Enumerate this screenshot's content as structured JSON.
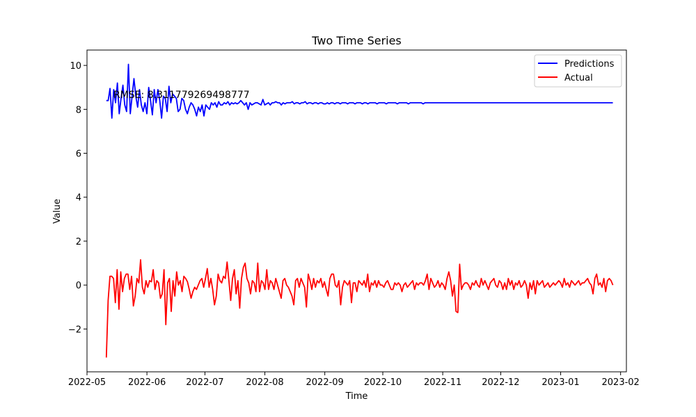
{
  "chart_data": {
    "type": "line",
    "title": "Two Time Series",
    "xlabel": "Time",
    "ylabel": "Value",
    "x_ticks": [
      "2022-05",
      "2022-06",
      "2022-07",
      "2022-08",
      "2022-09",
      "2022-10",
      "2022-11",
      "2022-12",
      "2023-01",
      "2023-02"
    ],
    "y_ticks": [
      -2,
      0,
      2,
      4,
      6,
      8,
      10
    ],
    "xlim": [
      "2022-05-01",
      "2023-02-04"
    ],
    "ylim": [
      -3.95,
      10.7
    ],
    "x_start": "2022-05-11",
    "x_end": "2023-01-28",
    "grid": false,
    "legend_position": "top-right",
    "annotation": "RMSE: 8.311779269498777",
    "series": [
      {
        "name": "Predictions",
        "color": "#0000ff",
        "values": [
          8.4,
          8.4,
          8.95,
          7.6,
          8.9,
          8.3,
          9.2,
          7.8,
          8.5,
          9.1,
          8.2,
          7.9,
          10.05,
          7.8,
          8.6,
          9.4,
          8.6,
          8.1,
          8.9,
          8.2,
          7.9,
          8.3,
          7.8,
          9.0,
          8.4,
          7.75,
          8.9,
          8.3,
          8.9,
          8.4,
          7.6,
          8.6,
          8.5,
          7.9,
          9.05,
          8.3,
          8.7,
          8.6,
          8.5,
          7.9,
          8.0,
          8.5,
          8.4,
          8.0,
          7.8,
          8.1,
          8.3,
          8.2,
          8.0,
          7.7,
          8.1,
          7.9,
          8.2,
          7.7,
          8.2,
          8.1,
          8.0,
          8.3,
          8.2,
          8.3,
          8.1,
          8.35,
          8.2,
          8.2,
          8.3,
          8.25,
          8.35,
          8.2,
          8.3,
          8.25,
          8.3,
          8.25,
          8.3,
          8.4,
          8.3,
          8.2,
          8.3,
          8.0,
          8.3,
          8.2,
          8.25,
          8.3,
          8.3,
          8.25,
          8.2,
          8.45,
          8.2,
          8.25,
          8.3,
          8.2,
          8.3,
          8.3,
          8.35,
          8.3,
          8.3,
          8.2,
          8.3,
          8.25,
          8.3,
          8.3,
          8.3,
          8.35,
          8.25,
          8.3,
          8.3,
          8.25,
          8.3,
          8.3,
          8.35,
          8.25,
          8.3,
          8.3,
          8.25,
          8.3,
          8.3,
          8.25,
          8.3,
          8.3,
          8.25,
          8.25,
          8.3,
          8.25,
          8.3,
          8.3,
          8.25,
          8.3,
          8.3,
          8.25,
          8.3,
          8.3,
          8.3,
          8.25,
          8.3,
          8.3,
          8.3,
          8.25,
          8.3,
          8.3,
          8.3,
          8.25,
          8.3,
          8.3,
          8.25,
          8.3,
          8.3,
          8.3,
          8.3,
          8.25,
          8.3,
          8.3,
          8.3,
          8.3,
          8.25,
          8.3,
          8.3,
          8.3,
          8.3,
          8.3,
          8.25,
          8.3,
          8.3,
          8.3,
          8.3,
          8.3,
          8.25,
          8.3,
          8.3,
          8.3,
          8.3,
          8.3,
          8.3,
          8.3,
          8.25,
          8.3,
          8.3,
          8.3,
          8.3,
          8.3,
          8.3,
          8.3,
          8.3,
          8.3,
          8.3,
          8.3,
          8.3,
          8.3,
          8.3,
          8.3,
          8.3,
          8.3,
          8.3,
          8.3,
          8.3,
          8.3,
          8.3,
          8.3,
          8.3,
          8.3,
          8.3,
          8.3,
          8.3,
          8.3,
          8.3,
          8.3,
          8.3,
          8.3,
          8.3,
          8.3,
          8.3,
          8.3,
          8.3,
          8.3,
          8.3,
          8.3,
          8.3,
          8.3,
          8.3,
          8.3,
          8.3,
          8.3,
          8.3,
          8.3,
          8.3,
          8.3,
          8.3,
          8.3,
          8.3,
          8.3,
          8.3,
          8.3,
          8.3,
          8.3,
          8.3,
          8.3,
          8.3,
          8.3,
          8.3,
          8.3,
          8.3,
          8.3,
          8.3,
          8.3,
          8.3,
          8.3,
          8.3,
          8.3,
          8.3,
          8.3,
          8.3,
          8.3,
          8.3,
          8.3,
          8.3,
          8.3,
          8.3,
          8.3,
          8.3,
          8.3,
          8.3,
          8.3,
          8.3,
          8.3,
          8.3,
          8.3,
          8.3,
          8.3,
          8.3,
          8.3,
          8.3,
          8.3,
          8.3,
          8.3,
          8.3,
          8.3,
          8.3,
          8.3
        ]
      },
      {
        "name": "Actual",
        "color": "#ff0000",
        "values": [
          -3.3,
          -0.7,
          0.4,
          0.4,
          0.3,
          -0.8,
          0.7,
          -1.1,
          0.6,
          -0.3,
          0.3,
          0.5,
          0.5,
          -0.2,
          0.4,
          -0.95,
          -0.5,
          0.3,
          0.1,
          1.15,
          -0.1,
          -0.4,
          0.2,
          -0.1,
          0.2,
          0.15,
          0.7,
          -0.2,
          0.2,
          0.1,
          -0.6,
          -0.4,
          0.7,
          -1.8,
          0.1,
          0.3,
          -1.2,
          0.2,
          -0.5,
          0.6,
          0.0,
          0.2,
          -0.3,
          0.4,
          0.3,
          0.15,
          -0.2,
          -0.6,
          -0.3,
          -0.1,
          -0.2,
          0.0,
          0.2,
          0.3,
          -0.1,
          0.3,
          0.75,
          -0.1,
          0.3,
          -0.2,
          -0.9,
          -0.5,
          0.5,
          0.2,
          0.1,
          0.4,
          0.3,
          1.05,
          0.2,
          -0.7,
          0.3,
          0.7,
          -0.4,
          0.2,
          -1.05,
          0.3,
          0.8,
          1.0,
          0.3,
          0.1,
          -0.4,
          0.2,
          0.1,
          -0.3,
          1.0,
          -0.3,
          0.2,
          0.1,
          -0.2,
          0.7,
          -0.2,
          0.2,
          0.1,
          -0.2,
          0.3,
          0.0,
          -0.3,
          -0.6,
          0.2,
          0.3,
          0.0,
          -0.1,
          -0.3,
          -0.5,
          -0.9,
          0.2,
          0.3,
          -0.1,
          0.3,
          0.1,
          -0.1,
          -1.0,
          0.5,
          0.2,
          -0.2,
          0.3,
          -0.1,
          0.2,
          0.1,
          0.3,
          -0.1,
          0.15,
          -0.2,
          -0.5,
          0.3,
          0.5,
          0.5,
          0.0,
          -0.1,
          0.2,
          -0.9,
          -0.1,
          0.2,
          0.1,
          0.0,
          0.2,
          -0.8,
          0.1,
          0.1,
          -0.3,
          0.2,
          0.1,
          0.0,
          0.2,
          -0.1,
          0.5,
          -0.3,
          0.1,
          0.0,
          0.2,
          -0.1,
          0.2,
          0.0,
          0.0,
          -0.1,
          0.1,
          0.2,
          0.0,
          -0.2,
          -0.2,
          0.1,
          0.0,
          0.1,
          0.0,
          -0.3,
          0.0,
          0.1,
          -0.1,
          0.0,
          0.1,
          0.2,
          -0.2,
          0.1,
          0.0,
          0.1,
          0.1,
          0.0,
          0.2,
          0.5,
          -0.2,
          0.3,
          0.1,
          -0.1,
          0.0,
          0.2,
          -0.1,
          0.1,
          0.0,
          -0.2,
          0.3,
          0.6,
          0.2,
          -0.5,
          0.0,
          -1.2,
          -1.25,
          0.95,
          -0.2,
          0.0,
          0.1,
          0.1,
          0.0,
          -0.2,
          0.1,
          0.0,
          0.2,
          0.0,
          -0.1,
          0.3,
          0.0,
          0.2,
          0.0,
          -0.2,
          0.1,
          0.2,
          0.3,
          0.0,
          -0.1,
          0.2,
          0.1,
          -0.2,
          0.1,
          -0.2,
          0.3,
          0.0,
          0.2,
          -0.2,
          0.1,
          0.0,
          0.2,
          -0.1,
          0.0,
          0.2,
          0.0,
          -0.6,
          0.1,
          -0.2,
          0.2,
          -0.4,
          0.2,
          0.0,
          0.1,
          0.2,
          -0.1,
          0.0,
          0.1,
          -0.1,
          0.0,
          0.1,
          0.0,
          0.1,
          0.2,
          0.1,
          -0.1,
          0.3,
          0.0,
          0.1,
          -0.1,
          0.2,
          0.1,
          0.0,
          0.1,
          0.2,
          0.0,
          0.1,
          0.1,
          0.2,
          0.3,
          0.1,
          0.0,
          -0.4,
          0.3,
          0.5,
          0.0,
          0.1,
          -0.1,
          0.3,
          -0.3,
          0.2,
          0.3,
          0.2,
          0.0
        ]
      }
    ]
  }
}
